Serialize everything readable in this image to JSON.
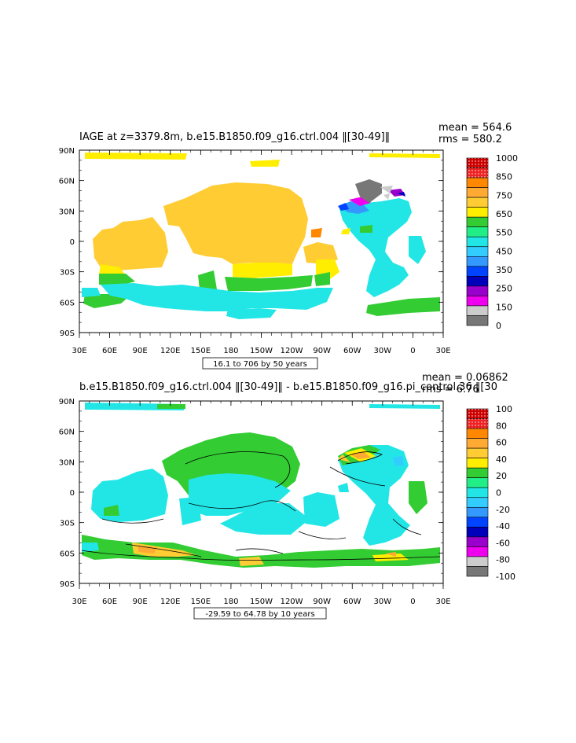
{
  "panels": [
    {
      "title": "IAGE at z=3379.8m, b.e15.B1850.f09_g16.ctrl.004 ‖[30-49]‖",
      "stat_line1": "mean = 564.6",
      "stat_line2": "rms = 580.2",
      "range_label": "16.1 to 706 by 50 years",
      "colorbar": {
        "labels": [
          "1000",
          "850",
          "750",
          "650",
          "550",
          "450",
          "350",
          "250",
          "150",
          "0"
        ],
        "colors": [
          "#cc0000",
          "#ee2222",
          "#ff8800",
          "#ffaa33",
          "#ffcc33",
          "#ffee00",
          "#33cc33",
          "#22ee88",
          "#22e6e6",
          "#33ccff",
          "#3399ff",
          "#0044ff",
          "#0000bb",
          "#9900cc",
          "#ee00ee",
          "#cccccc",
          "#777777"
        ]
      }
    },
    {
      "title": "b.e15.B1850.f09_g16.ctrl.004 ‖[30-49]‖ - b.e15.B1850.f09_g16.pi_control.36 ‖[30",
      "stat_line1": "mean = 0.06862",
      "stat_line2": "rms = 6.76",
      "range_label": "-29.59 to 64.78 by 10 years",
      "colorbar": {
        "labels": [
          "100",
          "80",
          "60",
          "40",
          "20",
          "0",
          "-20",
          "-40",
          "-60",
          "-80",
          "-100"
        ],
        "colors": [
          "#cc0000",
          "#ee2222",
          "#ff8800",
          "#ffaa33",
          "#ffcc33",
          "#ffee00",
          "#33cc33",
          "#22ee88",
          "#22e6e6",
          "#33ccff",
          "#3399ff",
          "#0044ff",
          "#0000bb",
          "#9900cc",
          "#ee00ee",
          "#cccccc",
          "#777777"
        ]
      }
    }
  ],
  "axes": {
    "lat_labels": [
      "90N",
      "60N",
      "30N",
      "0",
      "30S",
      "60S",
      "90S"
    ],
    "lon_labels": [
      "30E",
      "60E",
      "90E",
      "120E",
      "150E",
      "180",
      "150W",
      "120W",
      "90W",
      "60W",
      "30W",
      "0",
      "30E"
    ]
  }
}
